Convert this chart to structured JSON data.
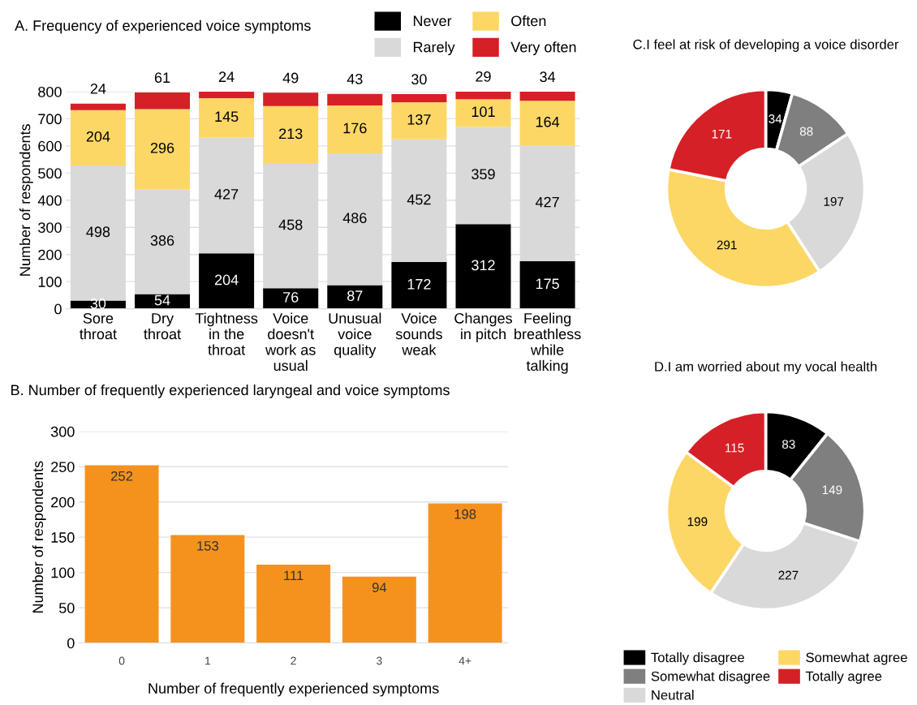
{
  "chart_data": [
    {
      "type": "bar",
      "title": "A. Frequency of experienced voice symptoms",
      "ylabel": "Number of respondents",
      "stacked": true,
      "data_labels": true,
      "grid": "y",
      "legend": "top right",
      "categories": [
        "Sore\nthroat",
        "Dry\nthroat",
        "Tightness\nin the\nthroat",
        "Voice\ndoesn't\nwork as\nusual",
        "Unusual\nvoice\nquality",
        "Voice\nsounds\nweak",
        "Changes\nin pitch",
        "Feeling\nbreathless\nwhile\ntalking"
      ],
      "series": [
        {
          "name": "Never",
          "color": "#000000",
          "values": [
            30,
            54,
            204,
            76,
            87,
            172,
            312,
            175
          ]
        },
        {
          "name": "Rarely",
          "color": "#d9d9d9",
          "values": [
            498,
            386,
            427,
            458,
            486,
            452,
            359,
            427
          ]
        },
        {
          "name": "Often",
          "color": "#fdd766",
          "values": [
            204,
            296,
            145,
            213,
            176,
            137,
            101,
            164
          ]
        },
        {
          "name": "Very often",
          "color": "#d62027",
          "values": [
            24,
            61,
            24,
            49,
            43,
            30,
            29,
            34
          ]
        }
      ],
      "ylim": [
        0,
        800
      ],
      "yticks": [
        0,
        100,
        200,
        300,
        400,
        500,
        600,
        700,
        800
      ]
    },
    {
      "type": "bar",
      "title": "B. Number of frequently experienced laryngeal and voice symptoms",
      "xlabel": "Number of frequently experienced symptoms",
      "ylabel": "Number of respondents",
      "data_labels": true,
      "grid": "y",
      "categories": [
        "0",
        "1",
        "2",
        "3",
        "4+"
      ],
      "series": [
        {
          "color": "#f5921e",
          "values": [
            252,
            153,
            111,
            94,
            198
          ]
        }
      ],
      "ylim": [
        0,
        300
      ],
      "yticks": [
        0,
        50,
        100,
        150,
        200,
        250,
        300
      ]
    },
    {
      "type": "donut",
      "title": "C.I feel at risk of developing a voice disorder",
      "data_labels": true,
      "legend": "bottom",
      "categories": [
        "Totally disagree",
        "Somewhat disagree",
        "Neutral",
        "Somewhat agree",
        "Totally agree"
      ],
      "values": [
        34,
        88,
        197,
        291,
        171
      ],
      "colors": [
        "#000000",
        "#7f7f7f",
        "#d9d9d9",
        "#fdd766",
        "#d62027"
      ]
    },
    {
      "type": "donut",
      "title": "D.I am worried about my vocal health",
      "data_labels": true,
      "categories": [
        null,
        null,
        null,
        null,
        null
      ],
      "values": [
        83,
        149,
        227,
        199,
        115
      ],
      "colors": [
        "#000000",
        "#7f7f7f",
        "#d9d9d9",
        "#fdd766",
        "#d62027"
      ]
    }
  ]
}
